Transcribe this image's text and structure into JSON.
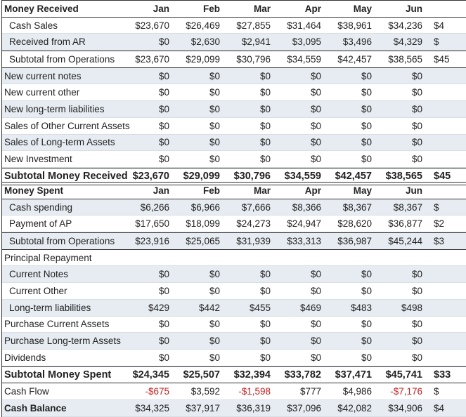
{
  "months": [
    "Jan",
    "Feb",
    "Mar",
    "Apr",
    "May",
    "Jun"
  ],
  "received": {
    "title": "Money Received",
    "rows": [
      {
        "label": "Cash Sales",
        "indent": true,
        "values": [
          "$23,670",
          "$26,469",
          "$27,855",
          "$31,464",
          "$38,961",
          "$34,236"
        ],
        "partial": "$4"
      },
      {
        "label": "Received from AR",
        "indent": true,
        "values": [
          "$0",
          "$2,630",
          "$2,941",
          "$3,095",
          "$3,496",
          "$4,329"
        ],
        "partial": "$"
      },
      {
        "label": "Subtotal from Operations",
        "indent": true,
        "style": "sub",
        "values": [
          "$23,670",
          "$29,099",
          "$30,796",
          "$34,559",
          "$42,457",
          "$38,565"
        ],
        "partial": "$45"
      },
      {
        "label": "New current notes",
        "values": [
          "$0",
          "$0",
          "$0",
          "$0",
          "$0",
          "$0"
        ]
      },
      {
        "label": "New current other",
        "values": [
          "$0",
          "$0",
          "$0",
          "$0",
          "$0",
          "$0"
        ]
      },
      {
        "label": "New long-term liabilities",
        "values": [
          "$0",
          "$0",
          "$0",
          "$0",
          "$0",
          "$0"
        ]
      },
      {
        "label": "Sales of Other Current Assets",
        "values": [
          "$0",
          "$0",
          "$0",
          "$0",
          "$0",
          "$0"
        ]
      },
      {
        "label": "Sales of Long-term Assets",
        "values": [
          "$0",
          "$0",
          "$0",
          "$0",
          "$0",
          "$0"
        ]
      },
      {
        "label": "New Investment",
        "values": [
          "$0",
          "$0",
          "$0",
          "$0",
          "$0",
          "$0"
        ]
      },
      {
        "label": "Subtotal Money Received",
        "style": "bold",
        "values": [
          "$23,670",
          "$29,099",
          "$30,796",
          "$34,559",
          "$42,457",
          "$38,565"
        ],
        "partial": "$45"
      }
    ]
  },
  "spent": {
    "title": "Money Spent",
    "rows": [
      {
        "label": "Cash spending",
        "indent": true,
        "values": [
          "$6,266",
          "$6,966",
          "$7,666",
          "$8,366",
          "$8,367",
          "$8,367"
        ],
        "partial": "$"
      },
      {
        "label": "Payment of AP",
        "indent": true,
        "values": [
          "$17,650",
          "$18,099",
          "$24,273",
          "$24,947",
          "$28,620",
          "$36,877"
        ],
        "partial": "$2"
      },
      {
        "label": "Subtotal from Operations",
        "indent": true,
        "style": "sub",
        "values": [
          "$23,916",
          "$25,065",
          "$31,939",
          "$33,313",
          "$36,987",
          "$45,244"
        ],
        "partial": "$3"
      },
      {
        "label": "Principal Repayment",
        "values": [
          "",
          "",
          "",
          "",
          "",
          ""
        ]
      },
      {
        "label": "Current Notes",
        "indent": true,
        "values": [
          "$0",
          "$0",
          "$0",
          "$0",
          "$0",
          "$0"
        ]
      },
      {
        "label": "Current Other",
        "indent": true,
        "values": [
          "$0",
          "$0",
          "$0",
          "$0",
          "$0",
          "$0"
        ]
      },
      {
        "label": "Long-term liabilities",
        "indent": true,
        "values": [
          "$429",
          "$442",
          "$455",
          "$469",
          "$483",
          "$498"
        ]
      },
      {
        "label": "Purchase Current Assets",
        "values": [
          "$0",
          "$0",
          "$0",
          "$0",
          "$0",
          "$0"
        ]
      },
      {
        "label": "Purchase Long-term Assets",
        "values": [
          "$0",
          "$0",
          "$0",
          "$0",
          "$0",
          "$0"
        ]
      },
      {
        "label": "Dividends",
        "values": [
          "$0",
          "$0",
          "$0",
          "$0",
          "$0",
          "$0"
        ]
      },
      {
        "label": "Subtotal Money Spent",
        "style": "bold",
        "values": [
          "$24,345",
          "$25,507",
          "$32,394",
          "$33,782",
          "$37,471",
          "$45,741"
        ],
        "partial": "$33"
      },
      {
        "label": "Cash Flow",
        "values": [
          "-$675",
          "$3,592",
          "-$1,598",
          "$777",
          "$4,986",
          "-$7,176"
        ],
        "partial": "$"
      },
      {
        "label": "Cash Balance",
        "style": "lbold",
        "values": [
          "$34,325",
          "$37,917",
          "$36,319",
          "$37,096",
          "$42,082",
          "$34,906"
        ],
        "partial": "$4"
      }
    ]
  },
  "colors": {
    "negative": "#c62020",
    "row_shade": "#e6ecf2"
  }
}
